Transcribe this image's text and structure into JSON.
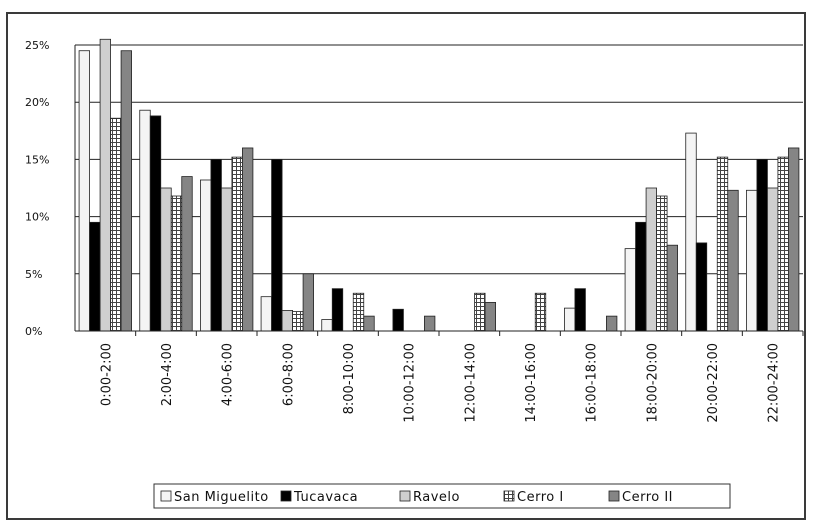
{
  "chart_data": {
    "type": "bar",
    "categories": [
      "0:00-2:00",
      "2:00-4:00",
      "4:00-6:00",
      "6:00-8:00",
      "8:00-10:00",
      "10:00-12:00",
      "12:00-14:00",
      "14:00-16:00",
      "16:00-18:00",
      "18:00-20:00",
      "20:00-22:00",
      "22:00-24:00"
    ],
    "series": [
      {
        "name": "San Miguelito",
        "fill": "#f4f4f4",
        "pattern": "none",
        "values": [
          24.5,
          19.3,
          13.2,
          3.0,
          1.0,
          0,
          0,
          0,
          2.0,
          7.2,
          17.3,
          12.3
        ]
      },
      {
        "name": "Tucavaca",
        "fill": "#000000",
        "pattern": "none",
        "values": [
          9.5,
          18.8,
          15.0,
          15.0,
          3.7,
          1.9,
          0,
          0,
          3.7,
          9.5,
          7.7,
          15.0
        ]
      },
      {
        "name": "Ravelo",
        "fill": "#cfcfcf",
        "pattern": "none",
        "values": [
          25.5,
          12.5,
          12.5,
          1.8,
          0,
          0,
          0,
          0,
          0,
          12.5,
          0,
          12.5
        ]
      },
      {
        "name": "Cerro I",
        "fill": "#ffffff",
        "pattern": "grid",
        "values": [
          18.6,
          11.8,
          15.2,
          1.7,
          3.3,
          0,
          3.3,
          3.3,
          0,
          11.8,
          15.2,
          15.2
        ]
      },
      {
        "name": "Cerro II",
        "fill": "#858585",
        "pattern": "none",
        "values": [
          24.5,
          13.5,
          16.0,
          5.0,
          1.3,
          1.3,
          2.5,
          0,
          1.3,
          7.5,
          12.3,
          16.0
        ]
      }
    ],
    "yticks": [
      "0%",
      "5%",
      "10%",
      "15%",
      "20%",
      "25%"
    ],
    "ylim": [
      0,
      25
    ],
    "grid": true,
    "legend_position": "bottom"
  }
}
